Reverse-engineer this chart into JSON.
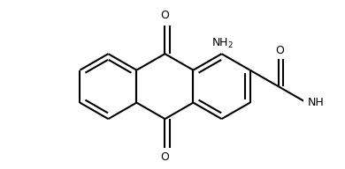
{
  "bg_color": "#ffffff",
  "line_color": "#000000",
  "line_width": 1.5,
  "font_size": 9,
  "bl": 0.26,
  "xlim": [
    -0.98,
    1.1
  ],
  "ylim": [
    -0.65,
    0.68
  ]
}
